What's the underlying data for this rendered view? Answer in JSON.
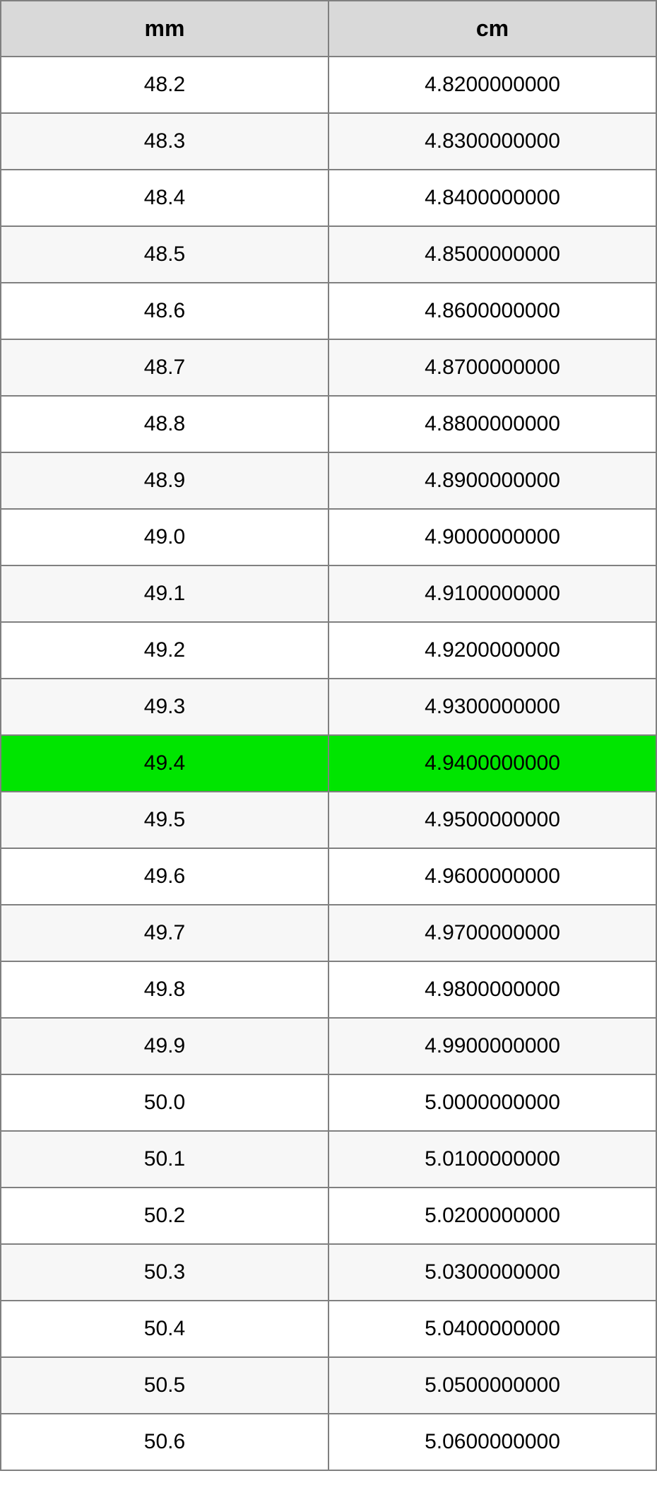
{
  "table": {
    "columns": [
      {
        "label": "mm"
      },
      {
        "label": "cm"
      }
    ],
    "header_bg": "#d9d9d9",
    "border_color": "#808080",
    "row_bg_even": "#ffffff",
    "row_bg_odd": "#f7f7f7",
    "highlight_bg": "#00e500",
    "highlight_index": 12,
    "font_size_header": 32,
    "font_size_cell": 30,
    "rows": [
      {
        "mm": "48.2",
        "cm": "4.8200000000"
      },
      {
        "mm": "48.3",
        "cm": "4.8300000000"
      },
      {
        "mm": "48.4",
        "cm": "4.8400000000"
      },
      {
        "mm": "48.5",
        "cm": "4.8500000000"
      },
      {
        "mm": "48.6",
        "cm": "4.8600000000"
      },
      {
        "mm": "48.7",
        "cm": "4.8700000000"
      },
      {
        "mm": "48.8",
        "cm": "4.8800000000"
      },
      {
        "mm": "48.9",
        "cm": "4.8900000000"
      },
      {
        "mm": "49.0",
        "cm": "4.9000000000"
      },
      {
        "mm": "49.1",
        "cm": "4.9100000000"
      },
      {
        "mm": "49.2",
        "cm": "4.9200000000"
      },
      {
        "mm": "49.3",
        "cm": "4.9300000000"
      },
      {
        "mm": "49.4",
        "cm": "4.9400000000"
      },
      {
        "mm": "49.5",
        "cm": "4.9500000000"
      },
      {
        "mm": "49.6",
        "cm": "4.9600000000"
      },
      {
        "mm": "49.7",
        "cm": "4.9700000000"
      },
      {
        "mm": "49.8",
        "cm": "4.9800000000"
      },
      {
        "mm": "49.9",
        "cm": "4.9900000000"
      },
      {
        "mm": "50.0",
        "cm": "5.0000000000"
      },
      {
        "mm": "50.1",
        "cm": "5.0100000000"
      },
      {
        "mm": "50.2",
        "cm": "5.0200000000"
      },
      {
        "mm": "50.3",
        "cm": "5.0300000000"
      },
      {
        "mm": "50.4",
        "cm": "5.0400000000"
      },
      {
        "mm": "50.5",
        "cm": "5.0500000000"
      },
      {
        "mm": "50.6",
        "cm": "5.0600000000"
      }
    ]
  }
}
